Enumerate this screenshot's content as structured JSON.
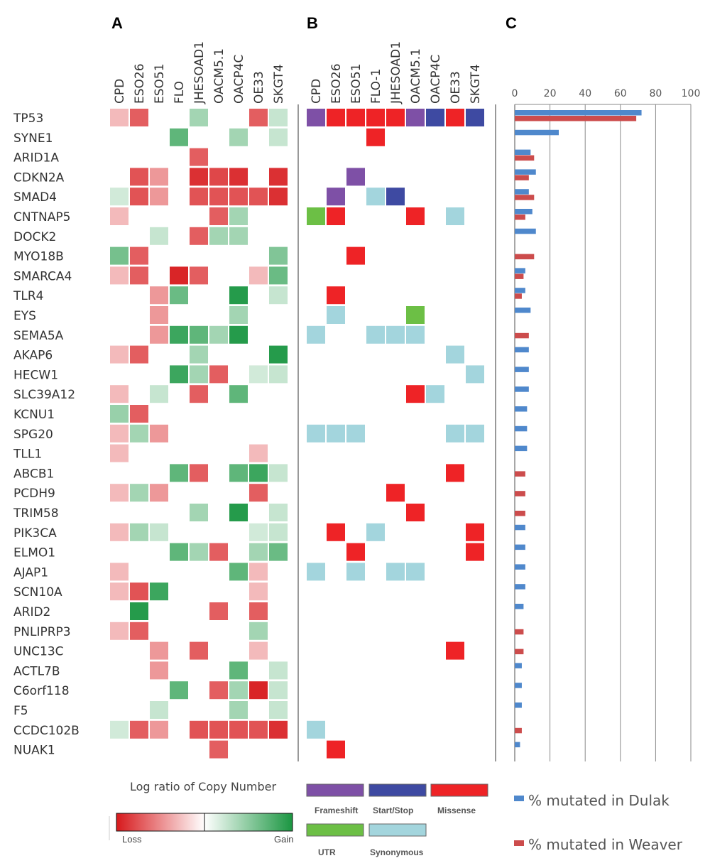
{
  "panels": {
    "a": "A",
    "b": "B",
    "c": "C"
  },
  "colors": {
    "frameshift": "#7e50a6",
    "startstop": "#3e4aa2",
    "missense": "#ee2326",
    "utr": "#6cbf45",
    "synonymous": "#a3d5dd",
    "dulak": "#4f88cc",
    "weaver": "#cc4c4c",
    "loss": "#d7191c",
    "gain": "#1a9641"
  },
  "legend_a": {
    "title": "Log ratio of Copy Number",
    "loss": "Loss",
    "gain": "Gain"
  },
  "legend_b": {
    "frameshift": "Frameshift",
    "startstop": "Start/Stop",
    "missense": "Missense",
    "utr": "UTR",
    "synonymous": "Synonymous"
  },
  "chart_data": [
    {
      "panel": "A",
      "type": "heatmap",
      "legend_title": "Log ratio of Copy Number",
      "scale_labels": [
        "Loss",
        "Gain"
      ],
      "columns": [
        "CPD",
        "ESO26",
        "ESO51",
        "FLO",
        "JHESOAD1",
        "OACM5.1",
        "OACP4C",
        "OE33",
        "SKGT4"
      ],
      "rows": [
        "TP53",
        "SYNE1",
        "ARID1A",
        "CDKN2A",
        "SMAD4",
        "CNTNAP5",
        "DOCK2",
        "MYO18B",
        "SMARCA4",
        "TLR4",
        "EYS",
        "SEMA5A",
        "AKAP6",
        "HECW1",
        "SLC39A12",
        "KCNU1",
        "SPG20",
        "TLL1",
        "ABCB1",
        "PCDH9",
        "TRIM58",
        "PIK3CA",
        "ELMO1",
        "AJAP1",
        "SCN10A",
        "ARID2",
        "PNLIPRP3",
        "UNC13C",
        "ACTL7B",
        "C6orf118",
        "F5",
        "CCDC102B",
        "NUAK1"
      ],
      "values": [
        [
          -0.3,
          -0.7,
          0,
          0,
          0.4,
          0,
          0,
          -0.7,
          0.25
        ],
        [
          0,
          0,
          0,
          0.7,
          0,
          0,
          0.4,
          0,
          0.25
        ],
        [
          0,
          0,
          0,
          0,
          -0.7,
          0,
          0,
          0,
          0
        ],
        [
          0,
          -0.75,
          -0.45,
          0,
          -0.9,
          -0.8,
          -0.9,
          0,
          -0.9
        ],
        [
          0.2,
          -0.75,
          -0.45,
          0,
          -0.75,
          -0.75,
          -0.75,
          -0.75,
          -0.9
        ],
        [
          -0.3,
          0,
          0,
          0,
          0,
          -0.7,
          0.4,
          0,
          0
        ],
        [
          0,
          0,
          0.25,
          0,
          -0.7,
          0.4,
          0.4,
          0,
          0
        ],
        [
          0.6,
          -0.7,
          0,
          0,
          0,
          0,
          0,
          0,
          0.55
        ],
        [
          -0.3,
          -0.7,
          0,
          -0.95,
          -0.7,
          0,
          0,
          -0.3,
          0.65
        ],
        [
          0,
          0,
          -0.45,
          0.65,
          0,
          0,
          0.95,
          0,
          0.25
        ],
        [
          0,
          0,
          -0.45,
          0,
          0,
          0,
          0.4,
          0,
          0
        ],
        [
          0,
          0,
          -0.45,
          0.85,
          0.7,
          0.4,
          0.95,
          0,
          0
        ],
        [
          -0.3,
          -0.7,
          0,
          0,
          0.4,
          0,
          0,
          0,
          0.95
        ],
        [
          0,
          0,
          0,
          0.85,
          0.4,
          -0.7,
          0,
          0.2,
          0.25
        ],
        [
          -0.3,
          0,
          0.25,
          0,
          -0.7,
          0,
          0.7,
          0,
          0
        ],
        [
          0.45,
          -0.7,
          0,
          0,
          0,
          0,
          0,
          0,
          0
        ],
        [
          -0.3,
          0.4,
          -0.45,
          0,
          0,
          0,
          0,
          0,
          0
        ],
        [
          -0.3,
          0,
          0,
          0,
          0,
          0,
          0,
          -0.3,
          0
        ],
        [
          0,
          0,
          0,
          0.7,
          -0.7,
          0,
          0.7,
          0.85,
          0.25
        ],
        [
          -0.3,
          0.4,
          -0.45,
          0,
          0,
          0,
          0,
          -0.7,
          0
        ],
        [
          0,
          0,
          0,
          0,
          0.4,
          0,
          0.95,
          0,
          0.25
        ],
        [
          -0.3,
          0.4,
          0.25,
          0,
          0,
          0,
          0,
          0.2,
          0.25
        ],
        [
          0,
          0,
          0,
          0.7,
          0.4,
          -0.7,
          0,
          0.4,
          0.65
        ],
        [
          -0.3,
          0,
          0,
          0,
          0,
          0,
          0.7,
          -0.3,
          0
        ],
        [
          -0.3,
          -0.75,
          0.85,
          0,
          0,
          0,
          0,
          -0.3,
          0
        ],
        [
          0,
          0.95,
          0,
          0,
          0,
          -0.7,
          0,
          -0.7,
          0
        ],
        [
          -0.3,
          -0.7,
          0,
          0,
          0,
          0,
          0,
          0.4,
          0
        ],
        [
          0,
          0,
          -0.45,
          0,
          -0.7,
          0,
          0,
          -0.3,
          0
        ],
        [
          0,
          0,
          -0.45,
          0,
          0,
          0,
          0.7,
          0,
          0.25
        ],
        [
          0,
          0,
          0,
          0.7,
          0,
          -0.7,
          0.4,
          -0.95,
          0.25
        ],
        [
          0,
          0,
          0.25,
          0,
          0,
          0,
          0.4,
          0,
          0.25
        ],
        [
          0.2,
          -0.7,
          -0.45,
          0,
          -0.75,
          -0.75,
          -0.75,
          -0.75,
          -0.9
        ],
        [
          0,
          0,
          0,
          0,
          0,
          -0.7,
          0,
          0,
          0
        ]
      ]
    },
    {
      "panel": "B",
      "type": "heatmap",
      "columns": [
        "CPD",
        "ESO26",
        "ESO51",
        "FLO-1",
        "JHESOAD1",
        "OACM5.1",
        "OACP4C",
        "OE33",
        "SKGT4"
      ],
      "categories": [
        "Frameshift",
        "Start/Stop",
        "Missense",
        "UTR",
        "Synonymous"
      ],
      "cells": [
        {
          "row": "TP53",
          "col": "CPD",
          "type": "Frameshift"
        },
        {
          "row": "TP53",
          "col": "ESO26",
          "type": "Missense"
        },
        {
          "row": "TP53",
          "col": "ESO51",
          "type": "Missense"
        },
        {
          "row": "TP53",
          "col": "FLO-1",
          "type": "Missense"
        },
        {
          "row": "TP53",
          "col": "JHESOAD1",
          "type": "Missense"
        },
        {
          "row": "TP53",
          "col": "OACM5.1",
          "type": "Frameshift"
        },
        {
          "row": "TP53",
          "col": "OACP4C",
          "type": "Start/Stop"
        },
        {
          "row": "TP53",
          "col": "OE33",
          "type": "Missense"
        },
        {
          "row": "TP53",
          "col": "SKGT4",
          "type": "Start/Stop"
        },
        {
          "row": "SYNE1",
          "col": "FLO-1",
          "type": "Missense"
        },
        {
          "row": "CDKN2A",
          "col": "ESO51",
          "type": "Frameshift"
        },
        {
          "row": "SMAD4",
          "col": "ESO26",
          "type": "Frameshift"
        },
        {
          "row": "SMAD4",
          "col": "FLO-1",
          "type": "Synonymous"
        },
        {
          "row": "SMAD4",
          "col": "JHESOAD1",
          "type": "Start/Stop"
        },
        {
          "row": "CNTNAP5",
          "col": "CPD",
          "type": "UTR"
        },
        {
          "row": "CNTNAP5",
          "col": "ESO26",
          "type": "Missense"
        },
        {
          "row": "CNTNAP5",
          "col": "OACM5.1",
          "type": "Missense"
        },
        {
          "row": "CNTNAP5",
          "col": "OE33",
          "type": "Synonymous"
        },
        {
          "row": "MYO18B",
          "col": "ESO51",
          "type": "Missense"
        },
        {
          "row": "TLR4",
          "col": "ESO26",
          "type": "Missense"
        },
        {
          "row": "EYS",
          "col": "ESO26",
          "type": "Synonymous"
        },
        {
          "row": "EYS",
          "col": "OACM5.1",
          "type": "UTR"
        },
        {
          "row": "SEMA5A",
          "col": "CPD",
          "type": "Synonymous"
        },
        {
          "row": "SEMA5A",
          "col": "FLO-1",
          "type": "Synonymous"
        },
        {
          "row": "SEMA5A",
          "col": "JHESOAD1",
          "type": "Synonymous"
        },
        {
          "row": "SEMA5A",
          "col": "OACM5.1",
          "type": "Synonymous"
        },
        {
          "row": "AKAP6",
          "col": "OE33",
          "type": "Synonymous"
        },
        {
          "row": "HECW1",
          "col": "SKGT4",
          "type": "Synonymous"
        },
        {
          "row": "SLC39A12",
          "col": "OACM5.1",
          "type": "Missense"
        },
        {
          "row": "SLC39A12",
          "col": "OACP4C",
          "type": "Synonymous"
        },
        {
          "row": "SPG20",
          "col": "CPD",
          "type": "Synonymous"
        },
        {
          "row": "SPG20",
          "col": "ESO26",
          "type": "Synonymous"
        },
        {
          "row": "SPG20",
          "col": "ESO51",
          "type": "Synonymous"
        },
        {
          "row": "SPG20",
          "col": "OE33",
          "type": "Synonymous"
        },
        {
          "row": "SPG20",
          "col": "SKGT4",
          "type": "Synonymous"
        },
        {
          "row": "ABCB1",
          "col": "OE33",
          "type": "Missense"
        },
        {
          "row": "PCDH9",
          "col": "JHESOAD1",
          "type": "Missense"
        },
        {
          "row": "TRIM58",
          "col": "OACM5.1",
          "type": "Missense"
        },
        {
          "row": "PIK3CA",
          "col": "ESO26",
          "type": "Missense"
        },
        {
          "row": "PIK3CA",
          "col": "FLO-1",
          "type": "Synonymous"
        },
        {
          "row": "PIK3CA",
          "col": "SKGT4",
          "type": "Missense"
        },
        {
          "row": "ELMO1",
          "col": "ESO51",
          "type": "Missense"
        },
        {
          "row": "ELMO1",
          "col": "SKGT4",
          "type": "Missense"
        },
        {
          "row": "AJAP1",
          "col": "CPD",
          "type": "Synonymous"
        },
        {
          "row": "AJAP1",
          "col": "ESO51",
          "type": "Synonymous"
        },
        {
          "row": "AJAP1",
          "col": "JHESOAD1",
          "type": "Synonymous"
        },
        {
          "row": "AJAP1",
          "col": "OACM5.1",
          "type": "Synonymous"
        },
        {
          "row": "UNC13C",
          "col": "OE33",
          "type": "Missense"
        },
        {
          "row": "CCDC102B",
          "col": "CPD",
          "type": "Synonymous"
        },
        {
          "row": "NUAK1",
          "col": "ESO26",
          "type": "Missense"
        }
      ]
    },
    {
      "panel": "C",
      "type": "bar",
      "orientation": "horizontal",
      "xlim": [
        0,
        100
      ],
      "ticks": [
        "0",
        "20",
        "40",
        "60",
        "80",
        "100"
      ],
      "categories": [
        "TP53",
        "SYNE1",
        "ARID1A",
        "CDKN2A",
        "SMAD4",
        "CNTNAP5",
        "DOCK2",
        "MYO18B",
        "SMARCA4",
        "TLR4",
        "EYS",
        "SEMA5A",
        "AKAP6",
        "HECW1",
        "SLC39A12",
        "KCNU1",
        "SPG20",
        "TLL1",
        "ABCB1",
        "PCDH9",
        "TRIM58",
        "PIK3CA",
        "ELMO1",
        "AJAP1",
        "SCN10A",
        "ARID2",
        "PNLIPRP3",
        "UNC13C",
        "ACTL7B",
        "C6orf118",
        "F5",
        "CCDC102B",
        "NUAK1"
      ],
      "series": [
        {
          "name": "% mutated in Dulak",
          "values": [
            72,
            25,
            9,
            12,
            8,
            10,
            12,
            0,
            6,
            6,
            9,
            0,
            8,
            8,
            8,
            7,
            7,
            7,
            0,
            0,
            0,
            6,
            6,
            6,
            6,
            5,
            0,
            0,
            4,
            4,
            4,
            0,
            3
          ]
        },
        {
          "name": "% mutated in Weaver",
          "values": [
            69,
            0,
            11,
            8,
            11,
            6,
            0,
            11,
            5,
            4,
            0,
            8,
            0,
            0,
            0,
            0,
            0,
            0,
            6,
            6,
            6,
            0,
            0,
            0,
            0,
            0,
            5,
            5,
            0,
            0,
            0,
            4,
            0
          ]
        }
      ],
      "grid": true
    }
  ]
}
